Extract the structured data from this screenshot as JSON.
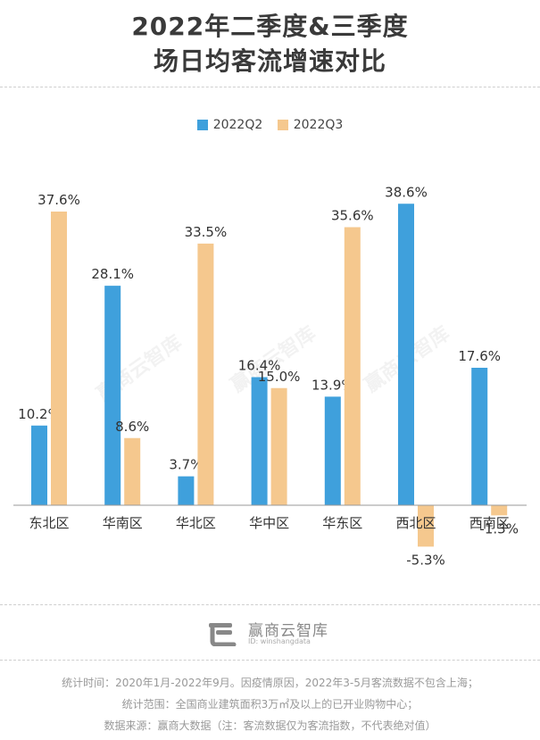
{
  "title_line1": "2022年二季度&三季度",
  "title_line2": "场日均客流增速对比",
  "colors": {
    "q2": "#3fa0dc",
    "q3": "#f5c88e"
  },
  "chart_data": {
    "type": "bar",
    "categories": [
      "东北区",
      "华南区",
      "华北区",
      "华中区",
      "华东区",
      "西北区",
      "西南区"
    ],
    "series": [
      {
        "name": "2022Q2",
        "values": [
          10.2,
          28.1,
          3.7,
          16.4,
          13.9,
          38.6,
          17.6
        ]
      },
      {
        "name": "2022Q3",
        "values": [
          37.6,
          8.6,
          33.5,
          15.0,
          35.6,
          -5.3,
          -1.3
        ]
      }
    ],
    "value_suffix": "%",
    "ylim": [
      -8,
      42
    ]
  },
  "logo": {
    "name": "赢商云智库",
    "id": "ID: winshangdata"
  },
  "watermark": "赢商云智库",
  "footer": {
    "line1": "统计时间：2020年1月-2022年9月。因疫情原因，2022年3-5月客流数据不包含上海；",
    "line2": "统计范围：全国商业建筑面积3万㎡及以上的已开业购物中心；",
    "line3": "数据来源：赢商大数据（注：客流数据仅为客流指数，不代表绝对值）"
  }
}
